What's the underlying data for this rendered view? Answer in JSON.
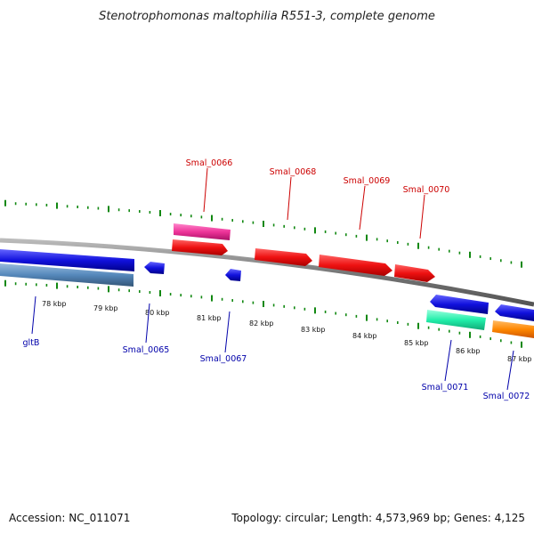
{
  "title": "Stenotrophomonas maltophilia R551-3, complete genome",
  "footer": {
    "accession": "Accession: NC_011071",
    "summary": "Topology: circular; Length: 4,573,969 bp; Genes: 4,125"
  },
  "scale_labels": [
    "78 kbp",
    "79 kbp",
    "80 kbp",
    "81 kbp",
    "82 kbp",
    "83 kbp",
    "84 kbp",
    "85 kbp",
    "86 kbp",
    "87 kbp"
  ],
  "gene_labels_forward": [
    "Smal_0066",
    "Smal_0068",
    "Smal_0069",
    "Smal_0070"
  ],
  "gene_labels_reverse": [
    "gltB",
    "Smal_0065",
    "Smal_0067",
    "Smal_0071",
    "Smal_0072"
  ],
  "colors": {
    "forward_gene": "#ee1111",
    "forward_highlight": "#ee3399",
    "reverse_gene": "#1111dd",
    "reverse_light": "#5588bb",
    "reverse_green": "#22eeaa",
    "reverse_orange": "#ff8800",
    "backbone": "#888888",
    "ticks": "#118811"
  }
}
